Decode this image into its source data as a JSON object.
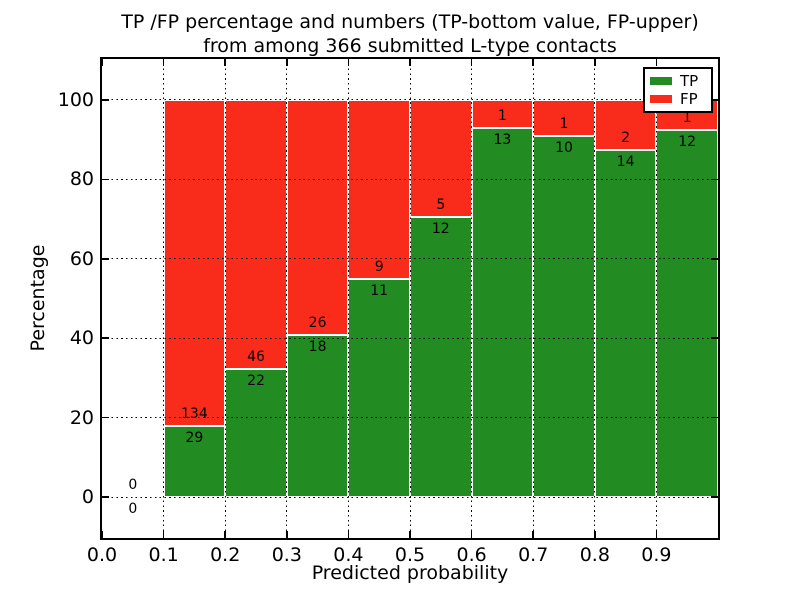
{
  "title": {
    "line1": "TP /FP percentage and numbers (TP-bottom value, FP-upper)",
    "line2": "from among 366 submitted L-type contacts"
  },
  "chart_data": {
    "type": "bar",
    "stacked": true,
    "normalized": "percent_of_bin_total",
    "title": "TP /FP percentage and numbers (TP-bottom value, FP-upper) from among 366 submitted L-type contacts",
    "xlabel": "Predicted probability",
    "ylabel": "Percentage",
    "bin_width": 0.1,
    "bin_starts": [
      0.0,
      0.1,
      0.2,
      0.3,
      0.4,
      0.5,
      0.6,
      0.7,
      0.8,
      0.9
    ],
    "series": [
      {
        "name": "TP",
        "color": "#228b22",
        "values": [
          0,
          29,
          22,
          18,
          11,
          12,
          13,
          10,
          14,
          12
        ]
      },
      {
        "name": "FP",
        "color": "#f92c1c",
        "values": [
          0,
          134,
          46,
          26,
          9,
          5,
          1,
          1,
          2,
          1
        ]
      }
    ],
    "tp_percent_per_bin": [
      null,
      17.8,
      32.4,
      40.9,
      55.0,
      70.6,
      92.9,
      90.9,
      87.5,
      92.3
    ],
    "total_contacts": 366,
    "xticks": [
      "0.0",
      "0.1",
      "0.2",
      "0.3",
      "0.4",
      "0.5",
      "0.6",
      "0.7",
      "0.8",
      "0.9"
    ],
    "yticks": [
      "0",
      "20",
      "40",
      "60",
      "80",
      "100"
    ],
    "ytick_values": [
      0,
      20,
      40,
      60,
      80,
      100
    ],
    "xlim": [
      0.0,
      1.0
    ],
    "ylim": [
      -10.3,
      110.3
    ],
    "grid": true,
    "grid_style": "dotted",
    "legend": {
      "position": "upper right",
      "entries": [
        {
          "label": "TP",
          "color": "#228b22"
        },
        {
          "label": "FP",
          "color": "#f92c1c"
        }
      ]
    }
  }
}
